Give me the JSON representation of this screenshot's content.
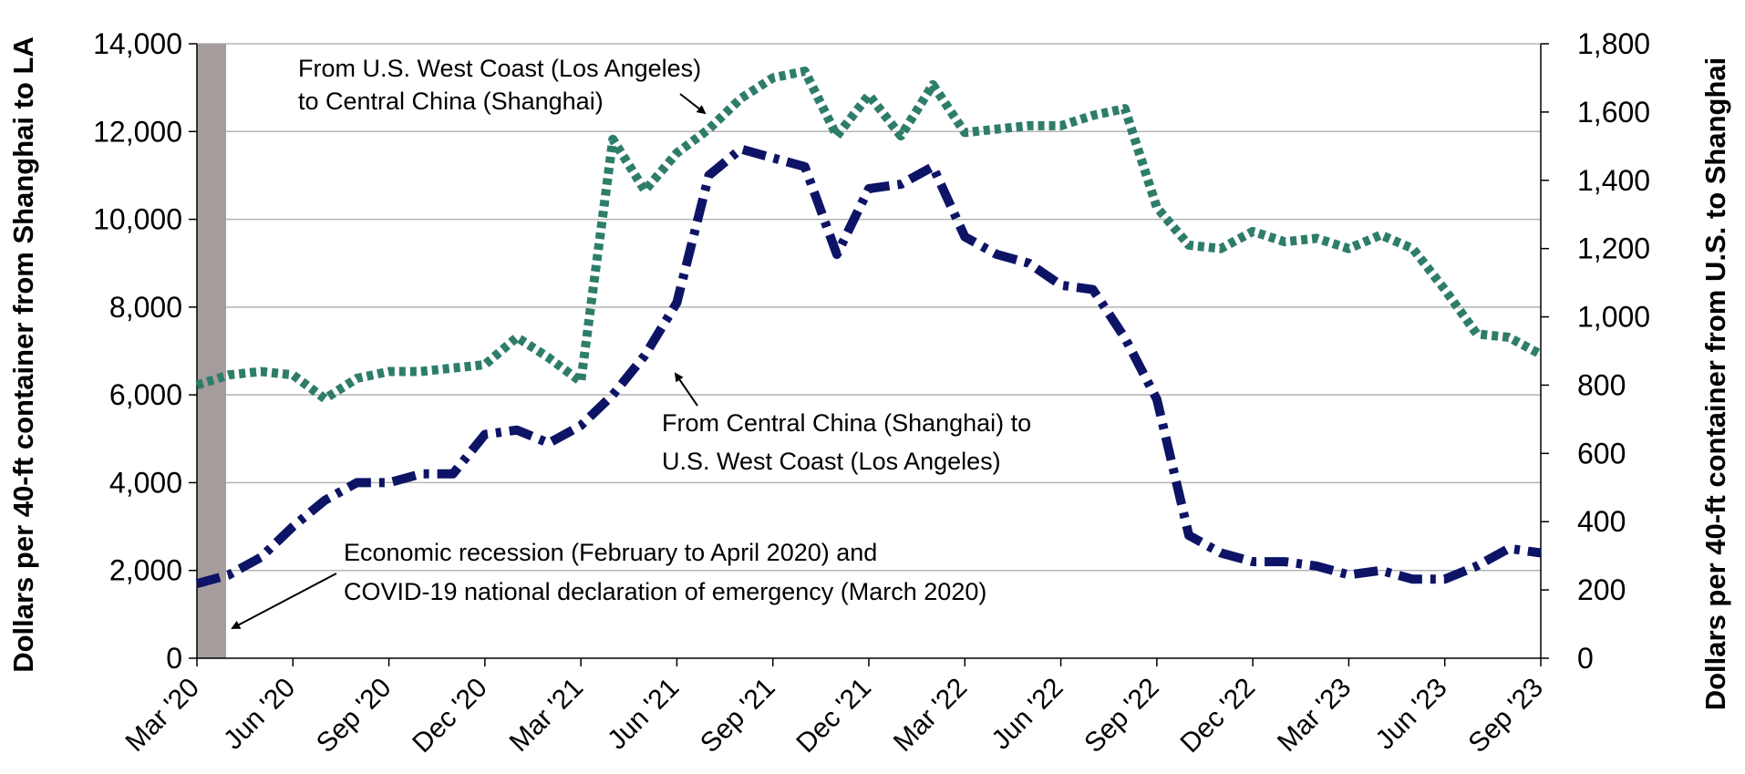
{
  "chart_data": {
    "type": "line",
    "x": [
      "Mar 2020",
      "Apr 2020",
      "May 2020",
      "Jun 2020",
      "Jul 2020",
      "Aug 2020",
      "Sep 2020",
      "Oct 2020",
      "Nov 2020",
      "Dec 2020",
      "Jan 2021",
      "Feb 2021",
      "Mar 2021",
      "Apr 2021",
      "May 2021",
      "Jun 2021",
      "Jul 2021",
      "Aug 2021",
      "Sep 2021",
      "Oct 2021",
      "Nov 2021",
      "Dec 2021",
      "Jan 2022",
      "Feb 2022",
      "Mar 2022",
      "Apr 2022",
      "May 2022",
      "Jun 2022",
      "Jul 2022",
      "Aug 2022",
      "Sep 2022",
      "Oct 2022",
      "Nov 2022",
      "Dec 2022",
      "Jan 2023",
      "Feb 2023",
      "Mar 2023",
      "Apr 2023",
      "May 2023",
      "Jun 2023",
      "Jul 2023",
      "Aug 2023",
      "Sep 2023"
    ],
    "x_tick_labels": [
      "Mar '20",
      "Jun '20",
      "Sep '20",
      "Dec '20",
      "Mar '21",
      "Jun '21",
      "Sep '21",
      "Dec '21",
      "Mar '22",
      "Jun '22",
      "Sep '22",
      "Dec '22",
      "Mar '23",
      "Jun '23",
      "Sep '23"
    ],
    "x_tick_label_positions": [
      0,
      3,
      6,
      9,
      12,
      15,
      18,
      21,
      24,
      27,
      30,
      33,
      36,
      39,
      42
    ],
    "series": [
      {
        "name": "From Central China (Shanghai) to U.S. West Coast (Los Angeles)",
        "axis": "left",
        "color": "#0d1466",
        "style": "dash-dot",
        "values": [
          1700,
          1900,
          2300,
          3000,
          3600,
          4000,
          4000,
          4200,
          4200,
          5100,
          5200,
          4900,
          5300,
          6000,
          6900,
          8100,
          11000,
          11600,
          11400,
          11200,
          9200,
          10700,
          10800,
          11200,
          9600,
          9200,
          9000,
          8500,
          8400,
          7300,
          5900,
          2800,
          2400,
          2200,
          2200,
          2100,
          1900,
          2000,
          1800,
          1800,
          2100,
          2500,
          2400
        ]
      },
      {
        "name": "From U.S. West Coast (Los Angeles) to Central China (Shanghai)",
        "axis": "right",
        "color": "#2e7d6b",
        "style": "dotted",
        "values": [
          800,
          830,
          840,
          830,
          760,
          820,
          840,
          840,
          850,
          860,
          940,
          880,
          810,
          1520,
          1370,
          1480,
          1550,
          1640,
          1700,
          1720,
          1530,
          1650,
          1530,
          1680,
          1540,
          1550,
          1560,
          1560,
          1590,
          1610,
          1320,
          1210,
          1200,
          1250,
          1220,
          1230,
          1200,
          1240,
          1200,
          1080,
          950,
          940,
          890
        ]
      }
    ],
    "y_left": {
      "label": "Dollars per 40-ft container from Shanghai to LA",
      "ylim": [
        0,
        14000
      ],
      "ticks": [
        0,
        2000,
        4000,
        6000,
        8000,
        10000,
        12000,
        14000
      ],
      "tick_labels": [
        "0",
        "2,000",
        "4,000",
        "6,000",
        "8,000",
        "10,000",
        "12,000",
        "14,000"
      ]
    },
    "y_right": {
      "label": "Dollars per 40-ft container from U.S. to Shanghai",
      "ylim": [
        0,
        1800
      ],
      "ticks": [
        0,
        200,
        400,
        600,
        800,
        1000,
        1200,
        1400,
        1600,
        1800
      ],
      "tick_labels": [
        "0",
        "200",
        "400",
        "600",
        "800",
        "1,000",
        "1,200",
        "1,400",
        "1,600",
        "1,800"
      ]
    },
    "grid": "horizontal",
    "shaded_band": {
      "from": "Mar 2020",
      "to": "Apr 2020",
      "color": "#a59d9c"
    },
    "annotations": {
      "west_to_china_line1": "From U.S. West Coast (Los Angeles)",
      "west_to_china_line2": "to Central China (Shanghai)",
      "china_to_west_line1": "From Central China (Shanghai) to",
      "china_to_west_line2": "U.S. West Coast (Los Angeles)",
      "recession_line1": "Economic recession (February to April 2020) and",
      "recession_line2": "COVID-19 national declaration of emergency (March 2020)"
    }
  }
}
